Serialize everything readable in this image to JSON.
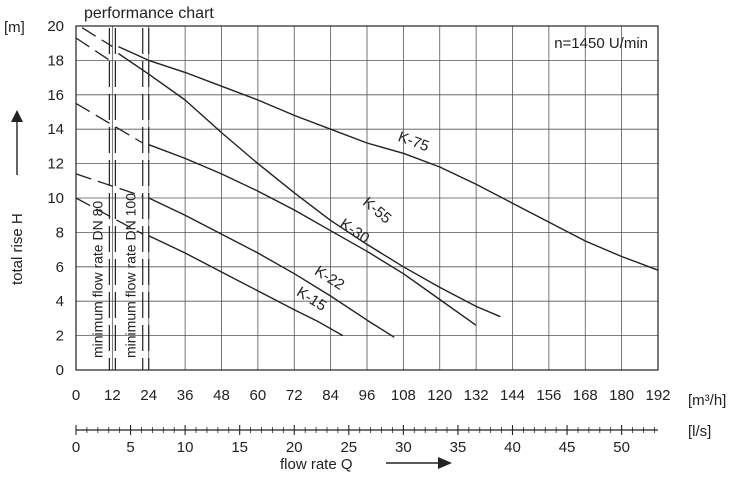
{
  "chart_data": {
    "type": "line",
    "title": "performance chart",
    "annotation": "n=1450 U/min",
    "xlabel": "flow rate Q",
    "ylabel": "total rise H",
    "y_unit": "[m]",
    "x_unit_primary": "[m³/h]",
    "x_unit_secondary": "[l/s]",
    "xlim": [
      0,
      192
    ],
    "ylim": [
      0,
      20
    ],
    "x_ticks": [
      0,
      12,
      24,
      36,
      48,
      60,
      72,
      84,
      96,
      108,
      120,
      132,
      144,
      156,
      168,
      180,
      192
    ],
    "y_ticks": [
      0,
      2,
      4,
      6,
      8,
      10,
      12,
      14,
      16,
      18,
      20
    ],
    "ls_ticks": [
      0,
      5,
      10,
      15,
      20,
      25,
      30,
      35,
      40,
      45,
      50
    ],
    "grid": true,
    "min_flow_lines": [
      {
        "label": "minimum flow rate DN 80",
        "x": 12
      },
      {
        "label": "minimum flow rate DN 100",
        "x": 23
      }
    ],
    "series": [
      {
        "name": "K-75",
        "x": [
          14,
          24,
          36,
          48,
          60,
          72,
          84,
          96,
          108,
          120,
          132,
          144,
          156,
          168,
          180,
          192
        ],
        "y": [
          18.8,
          18.0,
          17.3,
          16.5,
          15.7,
          14.8,
          14.0,
          13.2,
          12.6,
          11.8,
          10.8,
          9.7,
          8.6,
          7.5,
          6.6,
          5.8
        ]
      },
      {
        "name": "K-55",
        "x": [
          14,
          24,
          36,
          48,
          60,
          72,
          84,
          96,
          108,
          120,
          132,
          140
        ],
        "y": [
          18.4,
          17.2,
          15.7,
          13.8,
          12.0,
          10.3,
          8.7,
          7.3,
          6.0,
          4.8,
          3.7,
          3.1
        ]
      },
      {
        "name": "K-30",
        "x": [
          24,
          36,
          48,
          60,
          72,
          84,
          96,
          108,
          120,
          132
        ],
        "y": [
          13.1,
          12.3,
          11.4,
          10.4,
          9.3,
          8.1,
          6.9,
          5.6,
          4.1,
          2.6
        ]
      },
      {
        "name": "K-22",
        "x": [
          24,
          36,
          48,
          60,
          72,
          84,
          96,
          105
        ],
        "y": [
          10.0,
          9.0,
          7.9,
          6.8,
          5.6,
          4.3,
          2.9,
          1.9
        ]
      },
      {
        "name": "K-15",
        "x": [
          24,
          36,
          48,
          60,
          72,
          80,
          88
        ],
        "y": [
          7.8,
          6.8,
          5.7,
          4.6,
          3.5,
          2.8,
          2.0
        ]
      }
    ],
    "left_dashed_series": [
      {
        "of": "K-75",
        "x": [
          2,
          12
        ],
        "y": [
          19.9,
          18.8
        ]
      },
      {
        "of": "K-55",
        "x": [
          0,
          12
        ],
        "y": [
          19.3,
          17.9
        ]
      },
      {
        "of": "K-30",
        "x": [
          0,
          22
        ],
        "y": [
          15.5,
          13.2
        ]
      },
      {
        "of": "K-22",
        "x": [
          0,
          22
        ],
        "y": [
          11.4,
          10.1
        ]
      },
      {
        "of": "K-15",
        "x": [
          0,
          22
        ],
        "y": [
          10.0,
          7.9
        ]
      }
    ]
  }
}
